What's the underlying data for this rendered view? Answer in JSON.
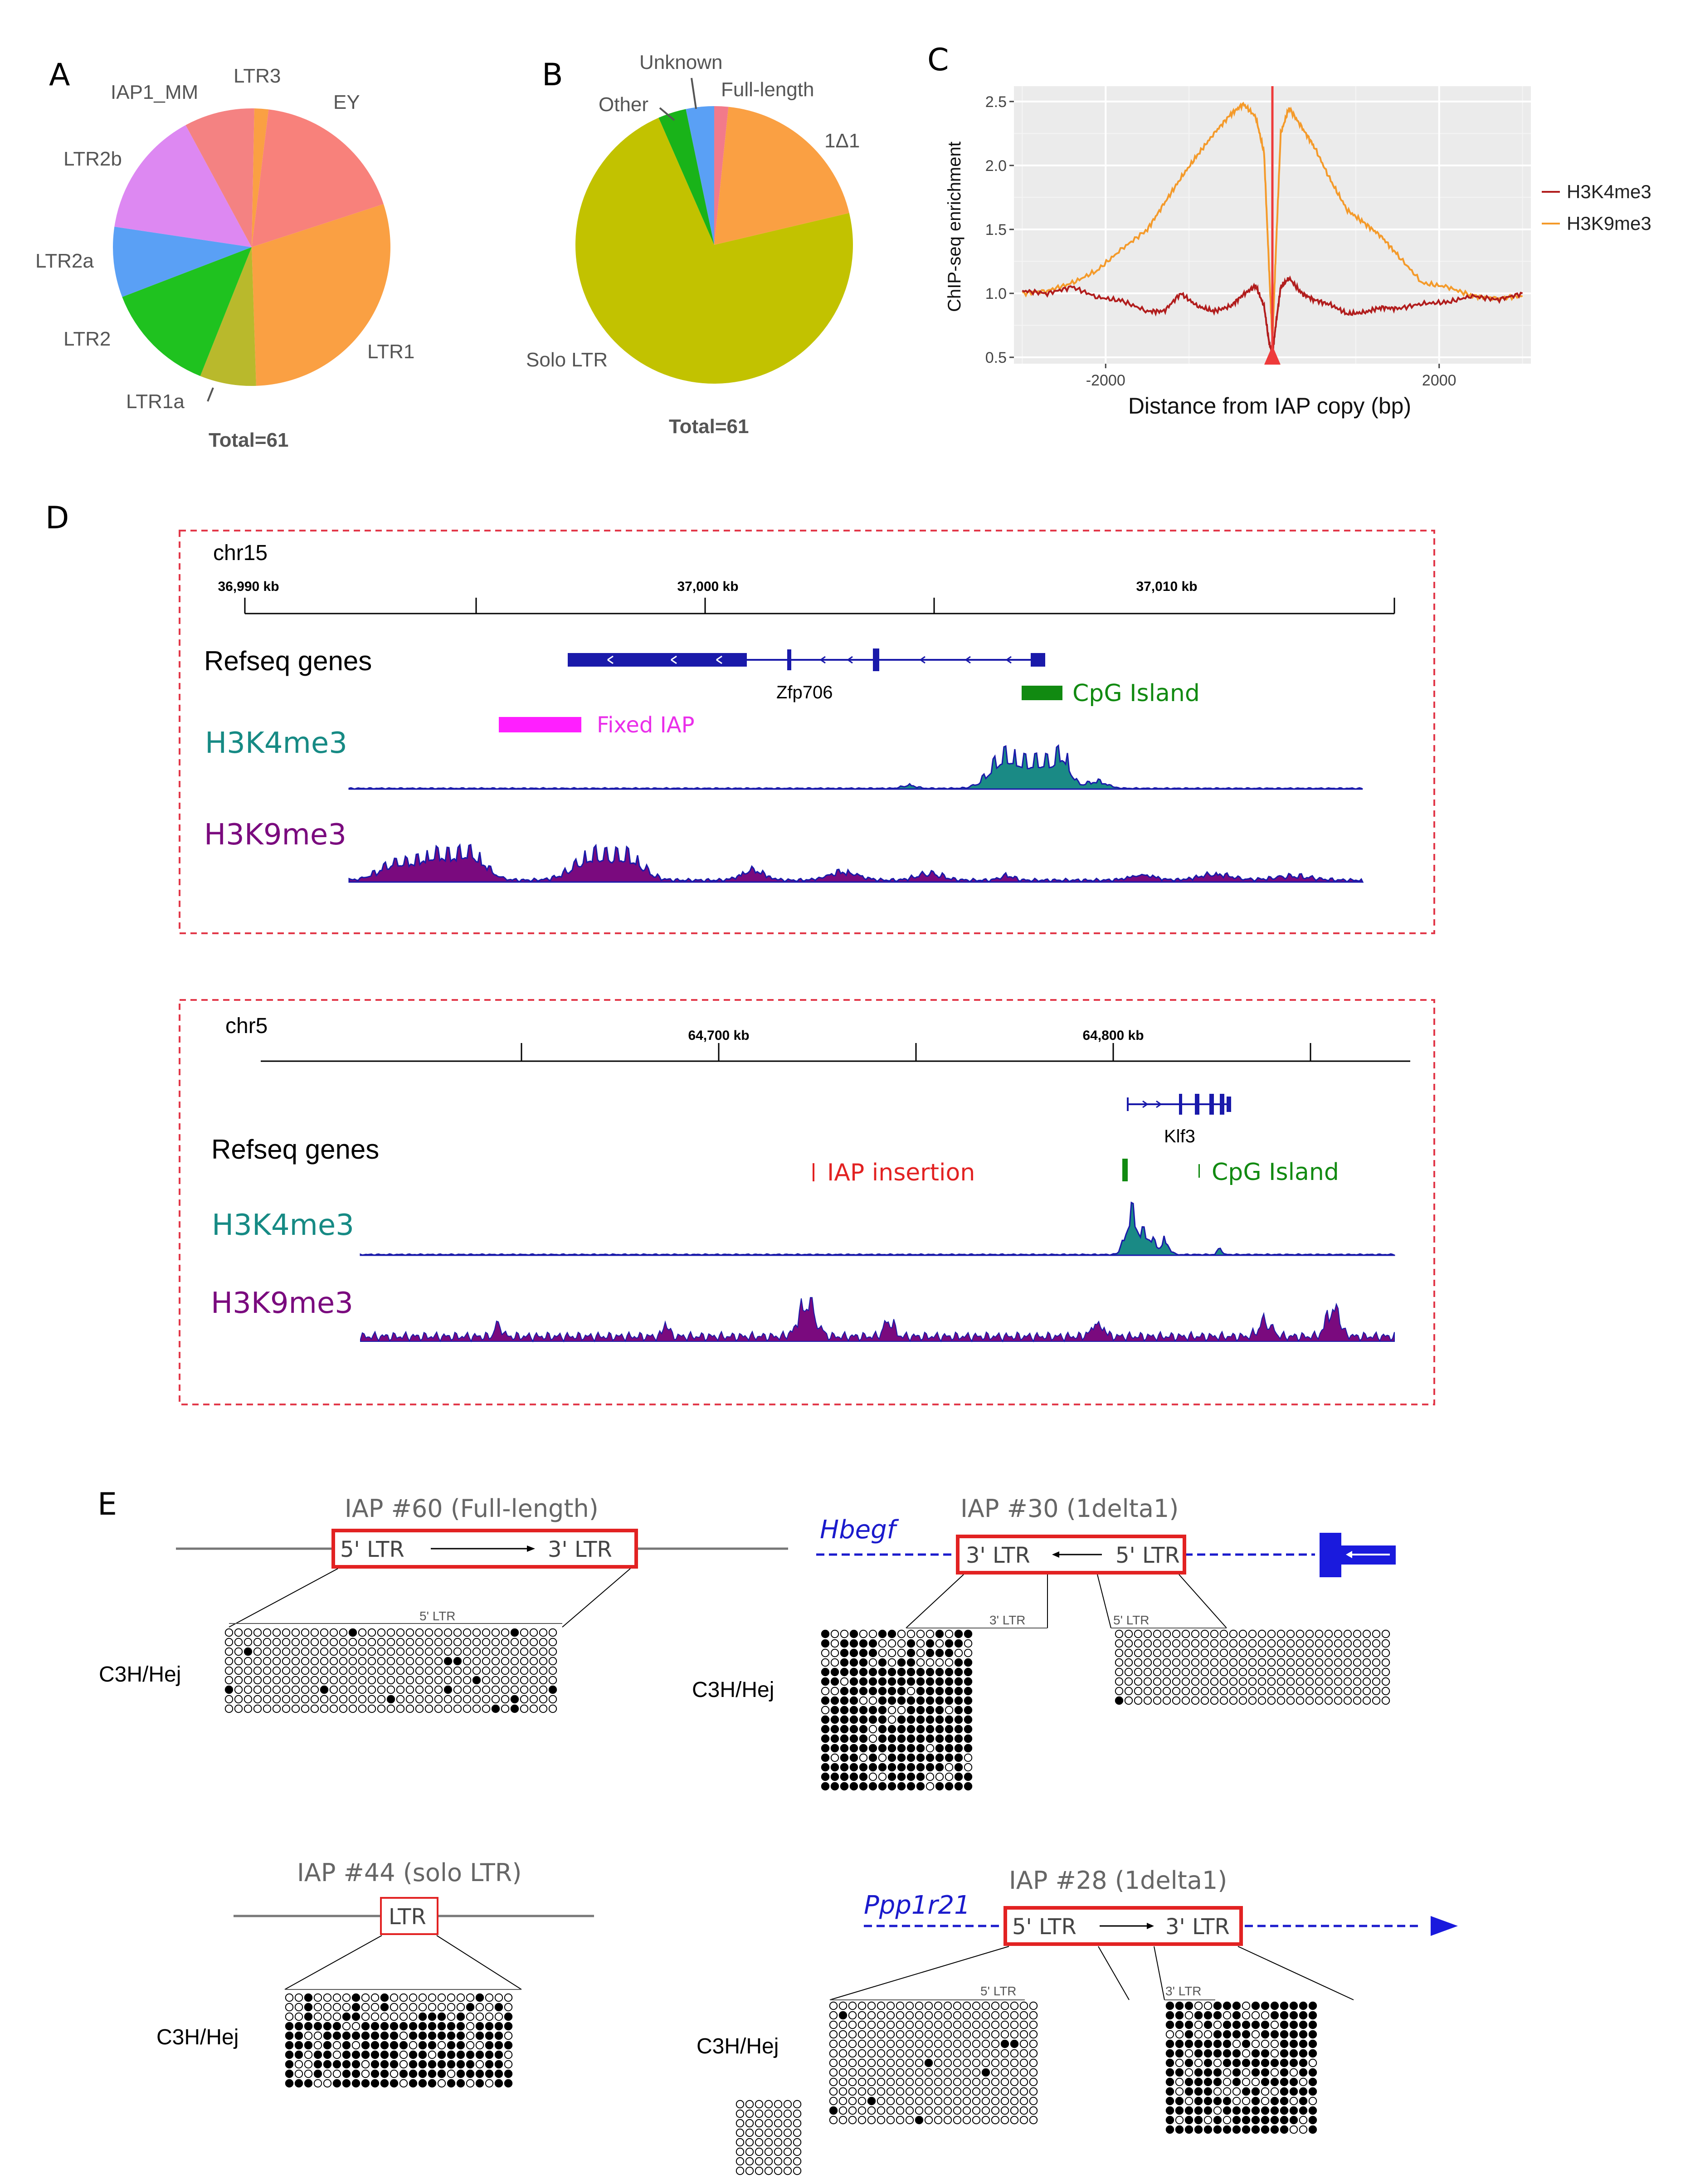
{
  "panels": {
    "A": "A",
    "B": "B",
    "C": "C",
    "D": "D",
    "E": "E"
  },
  "chart_data": [
    {
      "type": "pie",
      "panel": "A",
      "total_label": "Total=61",
      "slices": [
        {
          "label": "EY",
          "value": 11,
          "color": "#f8817b"
        },
        {
          "label": "LTR1",
          "value": 18,
          "color": "#faa043"
        },
        {
          "label": "LTR1a",
          "value": 4,
          "color": "#b9b92c"
        },
        {
          "label": "LTR2",
          "value": 8,
          "color": "#1fc21f"
        },
        {
          "label": "LTR2a",
          "value": 5,
          "color": "#5aa0f5"
        },
        {
          "label": "LTR2b",
          "value": 9,
          "color": "#dd88f2"
        },
        {
          "label": "IAP1_MM",
          "value": 5,
          "color": "#f48282"
        },
        {
          "label": "LTR3",
          "value": 1,
          "color": "#faa043"
        }
      ]
    },
    {
      "type": "pie",
      "panel": "B",
      "total_label": "Total=61",
      "slices": [
        {
          "label": "Full-length",
          "value": 1,
          "color": "#f27a8a"
        },
        {
          "label": "1Δ1",
          "value": 12,
          "color": "#faa043"
        },
        {
          "label": "Solo LTR",
          "value": 44,
          "color": "#c2c200"
        },
        {
          "label": "Other",
          "value": 2,
          "color": "#19b319"
        },
        {
          "label": "Unknown",
          "value": 2,
          "color": "#5aa0f5"
        }
      ]
    },
    {
      "type": "line",
      "panel": "C",
      "xlabel": "Distance from IAP copy (bp)",
      "ylabel": "ChIP-seq enrichment",
      "xlim": [
        -3100,
        3100
      ],
      "ylim": [
        0.45,
        2.62
      ],
      "xticks": [
        -2000,
        2000
      ],
      "yticks": [
        0.5,
        1.0,
        1.5,
        2.0,
        2.5
      ],
      "xtick_labels": [
        "-2000",
        "2000"
      ],
      "ytick_labels": [
        "0.5",
        "1.0",
        "1.5",
        "2.0",
        "2.5"
      ],
      "grid": true,
      "legend_position": "right",
      "series": [
        {
          "name": "H3K4me3",
          "color": "#b11d1d",
          "x": [
            -3000,
            -2700,
            -2400,
            -2100,
            -1800,
            -1500,
            -1300,
            -1100,
            -900,
            -700,
            -500,
            -350,
            -200,
            -100,
            -40,
            0,
            40,
            100,
            200,
            350,
            500,
            700,
            900,
            1100,
            1300,
            1500,
            1800,
            2100,
            2400,
            2700,
            3000
          ],
          "y": [
            1.02,
            1.0,
            1.05,
            0.97,
            0.94,
            0.86,
            0.86,
            1.0,
            0.9,
            0.86,
            0.9,
            0.99,
            1.06,
            0.9,
            0.62,
            0.52,
            0.75,
            1.05,
            1.12,
            1.0,
            0.95,
            0.91,
            0.84,
            0.85,
            0.89,
            0.88,
            0.92,
            0.93,
            0.98,
            0.95,
            1.0
          ]
        },
        {
          "name": "H3K9me3",
          "color": "#f49a2a",
          "x": [
            -3000,
            -2700,
            -2400,
            -2100,
            -1800,
            -1500,
            -1300,
            -1100,
            -900,
            -700,
            -500,
            -350,
            -200,
            -100,
            -40,
            0,
            40,
            100,
            200,
            350,
            500,
            700,
            900,
            1100,
            1300,
            1500,
            1800,
            2100,
            2400,
            2700,
            3000
          ],
          "y": [
            1.0,
            1.02,
            1.08,
            1.18,
            1.35,
            1.5,
            1.7,
            1.9,
            2.08,
            2.25,
            2.4,
            2.48,
            2.38,
            2.1,
            1.2,
            0.62,
            1.3,
            2.25,
            2.45,
            2.3,
            2.15,
            1.88,
            1.65,
            1.55,
            1.45,
            1.3,
            1.08,
            1.05,
            0.98,
            0.96,
            0.98
          ]
        }
      ]
    }
  ],
  "panel_D": {
    "region1": {
      "chr": "chr15",
      "ticks": [
        "36,990 kb",
        "37,000 kb",
        "37,010 kb"
      ],
      "refseq_label": "Refseq genes",
      "gene": "Zfp706",
      "cpg": "CpG Island",
      "iap": "Fixed IAP",
      "k4": "H3K4me3",
      "k9": "H3K9me3"
    },
    "region2": {
      "chr": "chr5",
      "ticks": [
        "64,700 kb",
        "64,800 kb"
      ],
      "refseq_label": "Refseq genes",
      "gene": "Klf3",
      "cpg": "CpG Island",
      "iap": "IAP insertion",
      "k4": "H3K4me3",
      "k9": "H3K9me3"
    }
  },
  "panel_E": {
    "iap60": {
      "title": "IAP #60 (Full-length)",
      "ltr5": "5' LTR",
      "ltr3": "3' LTR",
      "small": "5' LTR",
      "strain": "C3H/Hej"
    },
    "iap30": {
      "title": "IAP #30 (1delta1)",
      "gene": "Hbegf",
      "ltr3": "3' LTR",
      "ltr5": "5' LTR",
      "small3": "3' LTR",
      "small5": "5' LTR",
      "strain": "C3H/Hej"
    },
    "iap44": {
      "title": "IAP #44  (solo LTR)",
      "ltr": "LTR",
      "strain": "C3H/Hej"
    },
    "iap28": {
      "title": "IAP #28 (1delta1)",
      "gene": "Ppp1r21",
      "ltr5": "5' LTR",
      "ltr3": "3' LTR",
      "small5": "5' LTR",
      "small3": "3' LTR",
      "strain": "C3H/Hej"
    }
  }
}
